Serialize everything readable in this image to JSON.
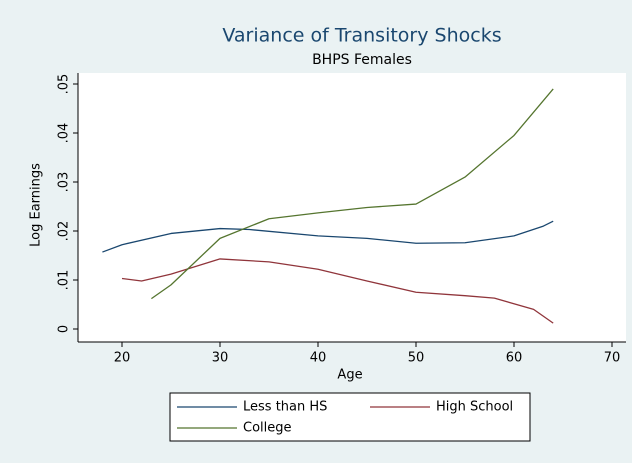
{
  "chart_data": {
    "type": "line",
    "title": "Variance of Transitory Shocks",
    "subtitle": "BHPS Females",
    "x_label": "Age",
    "y_label": "Log Earnings",
    "xlim": [
      20,
      70
    ],
    "xticks": [
      20,
      30,
      40,
      50,
      60,
      70
    ],
    "ylim": [
      0,
      0.05
    ],
    "yticks": [
      {
        "value": 0,
        "label": "0"
      },
      {
        "value": 0.01,
        "label": ".01"
      },
      {
        "value": 0.02,
        "label": ".02"
      },
      {
        "value": 0.03,
        "label": ".03"
      },
      {
        "value": 0.04,
        "label": ".04"
      },
      {
        "value": 0.05,
        "label": ".05"
      }
    ],
    "series": [
      {
        "name": "Less than HS",
        "color": "#1a476f",
        "x": [
          18,
          20,
          25,
          30,
          33,
          40,
          45,
          50,
          55,
          60,
          63,
          64
        ],
        "values": [
          0.0157,
          0.0172,
          0.0195,
          0.0205,
          0.0203,
          0.019,
          0.0185,
          0.0175,
          0.0176,
          0.019,
          0.021,
          0.022
        ]
      },
      {
        "name": "High School",
        "color": "#90353b",
        "x": [
          20,
          22,
          25,
          30,
          35,
          40,
          45,
          50,
          55,
          58,
          62,
          64
        ],
        "values": [
          0.0103,
          0.0098,
          0.0112,
          0.0143,
          0.0137,
          0.0122,
          0.0098,
          0.0075,
          0.0068,
          0.0063,
          0.004,
          0.0012
        ]
      },
      {
        "name": "College",
        "color": "#55752f",
        "x": [
          23,
          25,
          30,
          35,
          40,
          45,
          50,
          55,
          60,
          64
        ],
        "values": [
          0.0062,
          0.009,
          0.0185,
          0.0225,
          0.0237,
          0.0248,
          0.0255,
          0.031,
          0.0395,
          0.049
        ]
      }
    ]
  }
}
